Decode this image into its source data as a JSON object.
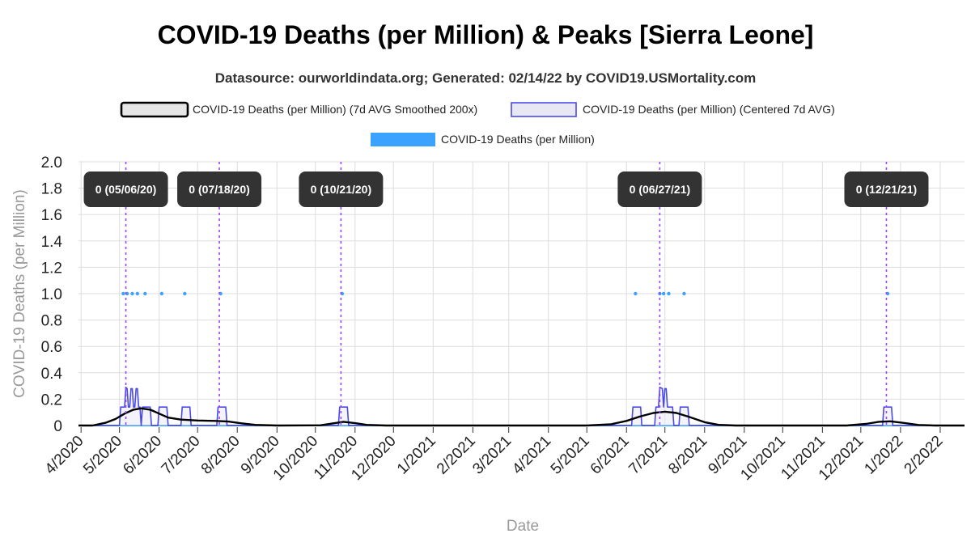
{
  "chart_data": {
    "type": "line",
    "title": "COVID-19 Deaths (per Million) & Peaks [Sierra Leone]",
    "subtitle": "Datasource: ourworldindata.org; Generated: 02/14/22 by COVID19.USMortality.com",
    "xlabel": "Date",
    "ylabel": "COVID-19 Deaths (per Million)",
    "ylim": [
      0,
      2.0
    ],
    "xlim": [
      "2020-03-30",
      "2022-02-20"
    ],
    "grid": true,
    "legend_position": "top",
    "y_ticks": [
      "0",
      "0.2",
      "0.4",
      "0.6",
      "0.8",
      "1.0",
      "1.2",
      "1.4",
      "1.6",
      "1.8",
      "2.0"
    ],
    "x_ticks": [
      {
        "date": "2020-04-01",
        "label": "4/2020"
      },
      {
        "date": "2020-05-01",
        "label": "5/2020"
      },
      {
        "date": "2020-06-01",
        "label": "6/2020"
      },
      {
        "date": "2020-07-01",
        "label": "7/2020"
      },
      {
        "date": "2020-08-01",
        "label": "8/2020"
      },
      {
        "date": "2020-09-01",
        "label": "9/2020"
      },
      {
        "date": "2020-10-01",
        "label": "10/2020"
      },
      {
        "date": "2020-11-01",
        "label": "11/2020"
      },
      {
        "date": "2020-12-01",
        "label": "12/2020"
      },
      {
        "date": "2021-01-01",
        "label": "1/2021"
      },
      {
        "date": "2021-02-01",
        "label": "2/2021"
      },
      {
        "date": "2021-03-01",
        "label": "3/2021"
      },
      {
        "date": "2021-04-01",
        "label": "4/2021"
      },
      {
        "date": "2021-05-01",
        "label": "5/2021"
      },
      {
        "date": "2021-06-01",
        "label": "6/2021"
      },
      {
        "date": "2021-07-01",
        "label": "7/2021"
      },
      {
        "date": "2021-08-01",
        "label": "8/2021"
      },
      {
        "date": "2021-09-01",
        "label": "9/2021"
      },
      {
        "date": "2021-10-01",
        "label": "10/2021"
      },
      {
        "date": "2021-11-01",
        "label": "11/2021"
      },
      {
        "date": "2021-12-01",
        "label": "12/2021"
      },
      {
        "date": "2022-01-01",
        "label": "1/2022"
      },
      {
        "date": "2022-02-01",
        "label": "2/2022"
      }
    ],
    "legend": [
      {
        "name": "COVID-19 Deaths (per Million) (7d AVG Smoothed 200x)",
        "kind": "smoothed"
      },
      {
        "name": "COVID-19 Deaths (per Million) (Centered 7d AVG)",
        "kind": "avg7"
      },
      {
        "name": "COVID-19 Deaths (per Million)",
        "kind": "daily"
      }
    ],
    "colors": {
      "smoothed": "#000000",
      "smoothed_fill": "#e6e6e6",
      "avg7": "#4a4ae6",
      "avg7_fill": "#e8e8f4",
      "daily": "#3ba3ff",
      "peak_line": "#a040ff",
      "annotation_bg": "#333333",
      "annotation_text": "#ffffff",
      "grid": "#dddddd"
    },
    "series": [
      {
        "name": "COVID-19 Deaths (per Million)",
        "kind": "daily_points",
        "points": [
          {
            "x": "2020-05-04",
            "y": 1.0
          },
          {
            "x": "2020-05-07",
            "y": 1.0
          },
          {
            "x": "2020-05-11",
            "y": 1.0
          },
          {
            "x": "2020-05-15",
            "y": 1.0
          },
          {
            "x": "2020-05-21",
            "y": 1.0
          },
          {
            "x": "2020-06-03",
            "y": 1.0
          },
          {
            "x": "2020-06-21",
            "y": 1.0
          },
          {
            "x": "2020-07-19",
            "y": 1.0
          },
          {
            "x": "2020-10-22",
            "y": 1.0
          },
          {
            "x": "2021-06-08",
            "y": 1.0
          },
          {
            "x": "2021-06-27",
            "y": 1.0
          },
          {
            "x": "2021-06-30",
            "y": 1.0
          },
          {
            "x": "2021-07-04",
            "y": 1.0
          },
          {
            "x": "2021-07-16",
            "y": 1.0
          },
          {
            "x": "2021-12-22",
            "y": 1.0
          }
        ]
      },
      {
        "name": "COVID-19 Deaths (per Million) (Centered 7d AVG)",
        "kind": "avg7",
        "points": [
          [
            "2020-03-30",
            0
          ],
          [
            "2020-05-01",
            0
          ],
          [
            "2020-05-02",
            0.14
          ],
          [
            "2020-05-05",
            0.14
          ],
          [
            "2020-05-06",
            0.29
          ],
          [
            "2020-05-07",
            0.28
          ],
          [
            "2020-05-08",
            0.14
          ],
          [
            "2020-05-09",
            0.14
          ],
          [
            "2020-05-10",
            0.28
          ],
          [
            "2020-05-11",
            0.28
          ],
          [
            "2020-05-12",
            0.14
          ],
          [
            "2020-05-13",
            0.14
          ],
          [
            "2020-05-14",
            0.28
          ],
          [
            "2020-05-15",
            0.28
          ],
          [
            "2020-05-16",
            0.14
          ],
          [
            "2020-05-17",
            0.14
          ],
          [
            "2020-05-18",
            0.0
          ],
          [
            "2020-05-19",
            0.14
          ],
          [
            "2020-05-25",
            0.14
          ],
          [
            "2020-05-26",
            0.0
          ],
          [
            "2020-05-31",
            0.0
          ],
          [
            "2020-06-01",
            0.14
          ],
          [
            "2020-06-07",
            0.14
          ],
          [
            "2020-06-08",
            0.0
          ],
          [
            "2020-06-18",
            0.0
          ],
          [
            "2020-06-19",
            0.14
          ],
          [
            "2020-06-25",
            0.14
          ],
          [
            "2020-06-26",
            0.0
          ],
          [
            "2020-07-16",
            0.0
          ],
          [
            "2020-07-17",
            0.14
          ],
          [
            "2020-07-23",
            0.14
          ],
          [
            "2020-07-24",
            0.0
          ],
          [
            "2020-10-19",
            0.0
          ],
          [
            "2020-10-20",
            0.14
          ],
          [
            "2020-10-26",
            0.14
          ],
          [
            "2020-10-27",
            0.0
          ],
          [
            "2021-06-05",
            0.0
          ],
          [
            "2021-06-06",
            0.14
          ],
          [
            "2021-06-12",
            0.14
          ],
          [
            "2021-06-13",
            0.0
          ],
          [
            "2021-06-23",
            0.0
          ],
          [
            "2021-06-24",
            0.14
          ],
          [
            "2021-06-26",
            0.14
          ],
          [
            "2021-06-27",
            0.29
          ],
          [
            "2021-06-29",
            0.28
          ],
          [
            "2021-06-30",
            0.14
          ],
          [
            "2021-07-01",
            0.28
          ],
          [
            "2021-07-02",
            0.28
          ],
          [
            "2021-07-03",
            0.14
          ],
          [
            "2021-07-07",
            0.14
          ],
          [
            "2021-07-08",
            0.0
          ],
          [
            "2021-07-12",
            0.0
          ],
          [
            "2021-07-13",
            0.14
          ],
          [
            "2021-07-19",
            0.14
          ],
          [
            "2021-07-20",
            0.0
          ],
          [
            "2021-12-18",
            0.0
          ],
          [
            "2021-12-19",
            0.14
          ],
          [
            "2021-12-25",
            0.14
          ],
          [
            "2021-12-26",
            0.0
          ],
          [
            "2022-02-20",
            0.0
          ]
        ]
      },
      {
        "name": "COVID-19 Deaths (per Million) (7d AVG Smoothed 200x)",
        "kind": "smoothed",
        "points": [
          [
            "2020-03-30",
            0
          ],
          [
            "2020-04-10",
            0.0
          ],
          [
            "2020-04-20",
            0.02
          ],
          [
            "2020-04-28",
            0.05
          ],
          [
            "2020-05-05",
            0.09
          ],
          [
            "2020-05-12",
            0.12
          ],
          [
            "2020-05-18",
            0.13
          ],
          [
            "2020-05-25",
            0.12
          ],
          [
            "2020-06-01",
            0.09
          ],
          [
            "2020-06-08",
            0.06
          ],
          [
            "2020-06-18",
            0.045
          ],
          [
            "2020-07-01",
            0.038
          ],
          [
            "2020-07-15",
            0.035
          ],
          [
            "2020-07-25",
            0.03
          ],
          [
            "2020-08-05",
            0.016
          ],
          [
            "2020-08-15",
            0.005
          ],
          [
            "2020-09-01",
            0.0
          ],
          [
            "2020-10-05",
            0.002
          ],
          [
            "2020-10-14",
            0.015
          ],
          [
            "2020-10-23",
            0.028
          ],
          [
            "2020-11-01",
            0.018
          ],
          [
            "2020-11-10",
            0.005
          ],
          [
            "2020-11-25",
            0.0
          ],
          [
            "2021-05-01",
            0.0
          ],
          [
            "2021-05-20",
            0.01
          ],
          [
            "2021-06-01",
            0.035
          ],
          [
            "2021-06-12",
            0.07
          ],
          [
            "2021-06-22",
            0.095
          ],
          [
            "2021-07-01",
            0.105
          ],
          [
            "2021-07-10",
            0.095
          ],
          [
            "2021-07-20",
            0.065
          ],
          [
            "2021-08-01",
            0.025
          ],
          [
            "2021-08-12",
            0.005
          ],
          [
            "2021-08-25",
            0.0
          ],
          [
            "2021-11-20",
            0.0
          ],
          [
            "2021-12-05",
            0.012
          ],
          [
            "2021-12-15",
            0.028
          ],
          [
            "2021-12-24",
            0.032
          ],
          [
            "2022-01-03",
            0.02
          ],
          [
            "2022-01-15",
            0.004
          ],
          [
            "2022-01-28",
            0.0
          ],
          [
            "2022-02-20",
            0.0
          ]
        ]
      }
    ],
    "peaks": [
      {
        "date": "2020-05-06",
        "label": "0 (05/06/20)"
      },
      {
        "date": "2020-07-18",
        "label": "0 (07/18/20)"
      },
      {
        "date": "2020-10-21",
        "label": "0 (10/21/20)"
      },
      {
        "date": "2021-06-27",
        "label": "0 (06/27/21)"
      },
      {
        "date": "2021-12-21",
        "label": "0 (12/21/21)"
      }
    ]
  }
}
